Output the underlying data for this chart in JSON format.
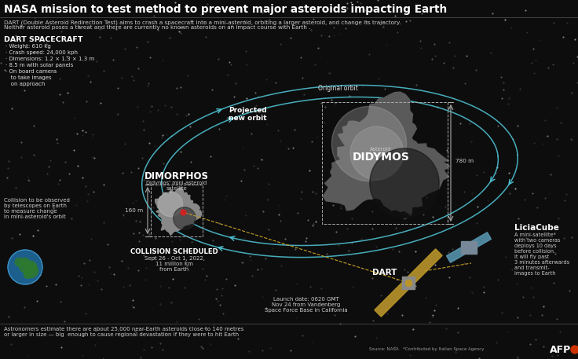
{
  "bg_color": "#0d0d0d",
  "title": "NASA mission to test method to prevent major asteroids impacting Earth",
  "subtitle_line1": "DART (Double Asteroid Redirection Test) aims to crash a spacecraft into a mini-asteroid, orbiting a larger asteroid, and change its trajectory.",
  "subtitle_line2": "Neither asteroid poses a threat and there are currently no known asteroids on an impact course with Earth .",
  "dart_spacecraft_title": "DART SPACECRAFT",
  "dart_specs": [
    "· Weight: 610 kg",
    "· Crash speed: 24,000 kph",
    "· Dimensions: 1.2 × 1.3 × 1.3 m",
    "· 8.5 m with solar panels",
    "· On board camera\n   to take images\n   on approach"
  ],
  "collision_obs_text": "Collision to be observed\nby telescopes on Earth\nto measure change\nin mini-asteroid's orbit",
  "orbit_label_original": "Original orbit",
  "orbit_label_new": "Projected\nnew orbit",
  "dimorphos_label": "DIMORPHOS",
  "dimorphos_sub": "Didymos' mini-asteroid\nsatellite",
  "dimorphos_size": "160 m",
  "didymos_label": "DIDYMOS",
  "didymos_sup": "Asteroid",
  "didymos_size": "780 m",
  "collision_title": "COLLISION SCHEDULED",
  "collision_text": "Sept 26 - Oct 1, 2022,\n11 million km\nfrom Earth",
  "launch_text": "Launch date: 0620 GMT\nNov 24 from Vandenberg\nSpace Force Base in California",
  "dart_label": "DART",
  "liciacube_title": "LiciaCube",
  "liciacube_text": "A mini-satellite*\nwith two cameras\ndeploys 10 days\nbefore collision.\nIt will fly past\n3 minutes afterwards\nand transmit-\nimages to Earth",
  "footer_text": "Astronomers estimate there are about 25,000 near-Earth asteroids close to 140 metres\nor larger in size — big  enough to cause regional devastation if they were to hit Earth",
  "source_text": "Source: NASA   *Contributed by Italian Space Agency",
  "afp_text": "AFP",
  "text_color": "#ffffff",
  "orbit_color": "#4dbfcf",
  "dart_panel_color": "#b8942a",
  "liciacube_panel_color": "#5a9ab5"
}
